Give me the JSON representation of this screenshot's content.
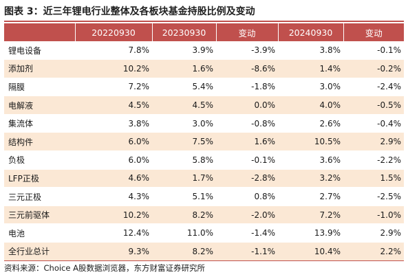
{
  "title": "图表 3：近三年锂电行业整体及各板块基金持股比例及变动",
  "table": {
    "headers": [
      "",
      "20220930",
      "20230930",
      "变动",
      "20240930",
      "变动"
    ],
    "rows": [
      [
        "锂电设备",
        "7.8%",
        "3.9%",
        "-3.9%",
        "3.8%",
        "-0.1%"
      ],
      [
        "添加剂",
        "10.2%",
        "1.6%",
        "-8.6%",
        "1.4%",
        "-0.2%"
      ],
      [
        "隔膜",
        "7.2%",
        "5.4%",
        "-1.8%",
        "3.0%",
        "-2.4%"
      ],
      [
        "电解液",
        "4.5%",
        "4.5%",
        "0.0%",
        "4.0%",
        "-0.5%"
      ],
      [
        "集流体",
        "3.8%",
        "3.0%",
        "-0.8%",
        "2.6%",
        "-0.4%"
      ],
      [
        "结构件",
        "6.0%",
        "7.5%",
        "1.6%",
        "10.5%",
        "2.9%"
      ],
      [
        "负极",
        "6.0%",
        "5.8%",
        "-0.1%",
        "3.6%",
        "-2.2%"
      ],
      [
        "LFP正极",
        "4.6%",
        "1.7%",
        "-2.8%",
        "3.2%",
        "1.5%"
      ],
      [
        "三元正极",
        "4.3%",
        "5.1%",
        "0.8%",
        "2.7%",
        "-2.5%"
      ],
      [
        "三元前驱体",
        "10.2%",
        "8.2%",
        "-2.0%",
        "7.2%",
        "-1.0%"
      ],
      [
        "电池",
        "12.4%",
        "11.0%",
        "-1.4%",
        "13.9%",
        "2.9%"
      ],
      [
        "全行业总计",
        "9.3%",
        "8.2%",
        "-1.1%",
        "10.4%",
        "2.2%"
      ]
    ]
  },
  "source": "资料来源：Choice A股数据浏览器，东方财富证券研究所",
  "colors": {
    "header_bg": "#c0504d",
    "header_text": "#ffffff",
    "alt_row_bg": "#fbe8d5",
    "rule": "#c0504d"
  }
}
